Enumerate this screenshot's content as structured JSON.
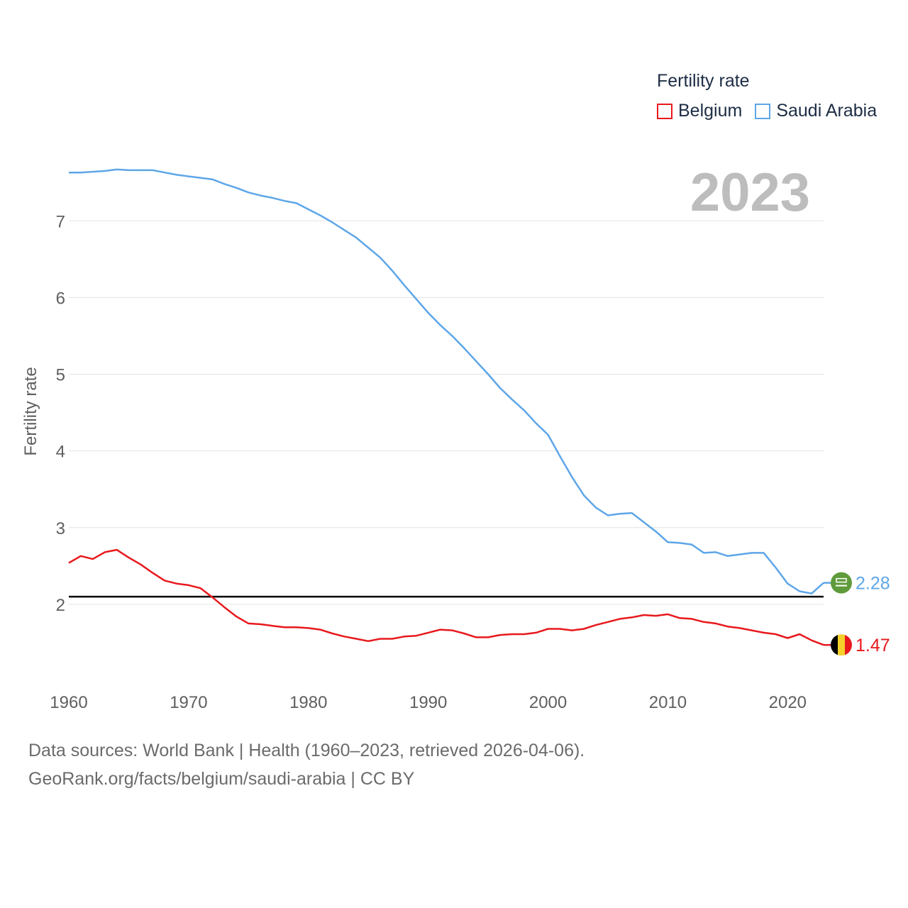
{
  "chart_data": {
    "type": "line",
    "legend_title": "Fertility rate",
    "ylabel": "Fertility rate",
    "xlabel": "",
    "year_display": "2023",
    "xlim": [
      1960,
      2023
    ],
    "ylim": [
      1,
      7.9
    ],
    "y_ticks": [
      2,
      3,
      4,
      5,
      6,
      7
    ],
    "x_ticks": [
      1960,
      1970,
      1980,
      1990,
      2000,
      2010,
      2020
    ],
    "reference_line": {
      "value": 2.1,
      "color": "#000000"
    },
    "series": [
      {
        "name": "Belgium",
        "color": "#e8191d",
        "end_label": "1.47",
        "flag": "belgium-flag-icon",
        "years": [
          1960,
          1961,
          1962,
          1963,
          1964,
          1965,
          1966,
          1967,
          1968,
          1969,
          1970,
          1971,
          1972,
          1973,
          1974,
          1975,
          1976,
          1977,
          1978,
          1979,
          1980,
          1981,
          1982,
          1983,
          1984,
          1985,
          1986,
          1987,
          1988,
          1989,
          1990,
          1991,
          1992,
          1993,
          1994,
          1995,
          1996,
          1997,
          1998,
          1999,
          2000,
          2001,
          2002,
          2003,
          2004,
          2005,
          2006,
          2007,
          2008,
          2009,
          2010,
          2011,
          2012,
          2013,
          2014,
          2015,
          2016,
          2017,
          2018,
          2019,
          2020,
          2021,
          2022,
          2023
        ],
        "values": [
          2.54,
          2.63,
          2.59,
          2.68,
          2.71,
          2.61,
          2.52,
          2.41,
          2.31,
          2.27,
          2.25,
          2.21,
          2.09,
          1.96,
          1.84,
          1.75,
          1.74,
          1.72,
          1.7,
          1.7,
          1.69,
          1.67,
          1.62,
          1.58,
          1.55,
          1.52,
          1.55,
          1.55,
          1.58,
          1.59,
          1.63,
          1.67,
          1.66,
          1.62,
          1.57,
          1.57,
          1.6,
          1.61,
          1.61,
          1.63,
          1.68,
          1.68,
          1.66,
          1.68,
          1.73,
          1.77,
          1.81,
          1.83,
          1.86,
          1.85,
          1.87,
          1.82,
          1.81,
          1.77,
          1.75,
          1.71,
          1.69,
          1.66,
          1.63,
          1.61,
          1.56,
          1.61,
          1.53,
          1.47
        ]
      },
      {
        "name": "Saudi Arabia",
        "color": "#5ea6e8",
        "end_label": "2.28",
        "flag": "saudi-arabia-flag-icon",
        "years": [
          1960,
          1961,
          1962,
          1963,
          1964,
          1965,
          1966,
          1967,
          1968,
          1969,
          1970,
          1971,
          1972,
          1973,
          1974,
          1975,
          1976,
          1977,
          1978,
          1979,
          1980,
          1981,
          1982,
          1983,
          1984,
          1985,
          1986,
          1987,
          1988,
          1989,
          1990,
          1991,
          1992,
          1993,
          1994,
          1995,
          1996,
          1997,
          1998,
          1999,
          2000,
          2001,
          2002,
          2003,
          2004,
          2005,
          2006,
          2007,
          2008,
          2009,
          2010,
          2011,
          2012,
          2013,
          2014,
          2015,
          2016,
          2017,
          2018,
          2019,
          2020,
          2021,
          2022,
          2023
        ],
        "values": [
          7.63,
          7.63,
          7.64,
          7.65,
          7.67,
          7.66,
          7.66,
          7.66,
          7.63,
          7.6,
          7.58,
          7.56,
          7.54,
          7.48,
          7.43,
          7.37,
          7.33,
          7.3,
          7.26,
          7.23,
          7.15,
          7.07,
          6.98,
          6.88,
          6.78,
          6.65,
          6.52,
          6.35,
          6.16,
          5.98,
          5.8,
          5.64,
          5.5,
          5.34,
          5.17,
          5.0,
          4.82,
          4.67,
          4.53,
          4.36,
          4.21,
          3.93,
          3.66,
          3.42,
          3.26,
          3.16,
          3.18,
          3.19,
          3.07,
          2.95,
          2.81,
          2.8,
          2.78,
          2.67,
          2.68,
          2.63,
          2.65,
          2.67,
          2.67,
          2.48,
          2.27,
          2.17,
          2.14,
          2.28
        ]
      }
    ]
  },
  "footer": {
    "line1": "Data sources: World Bank | Health (1960–2023, retrieved 2026-04-06).",
    "line2": "GeoRank.org/facts/belgium/saudi-arabia | CC BY"
  }
}
